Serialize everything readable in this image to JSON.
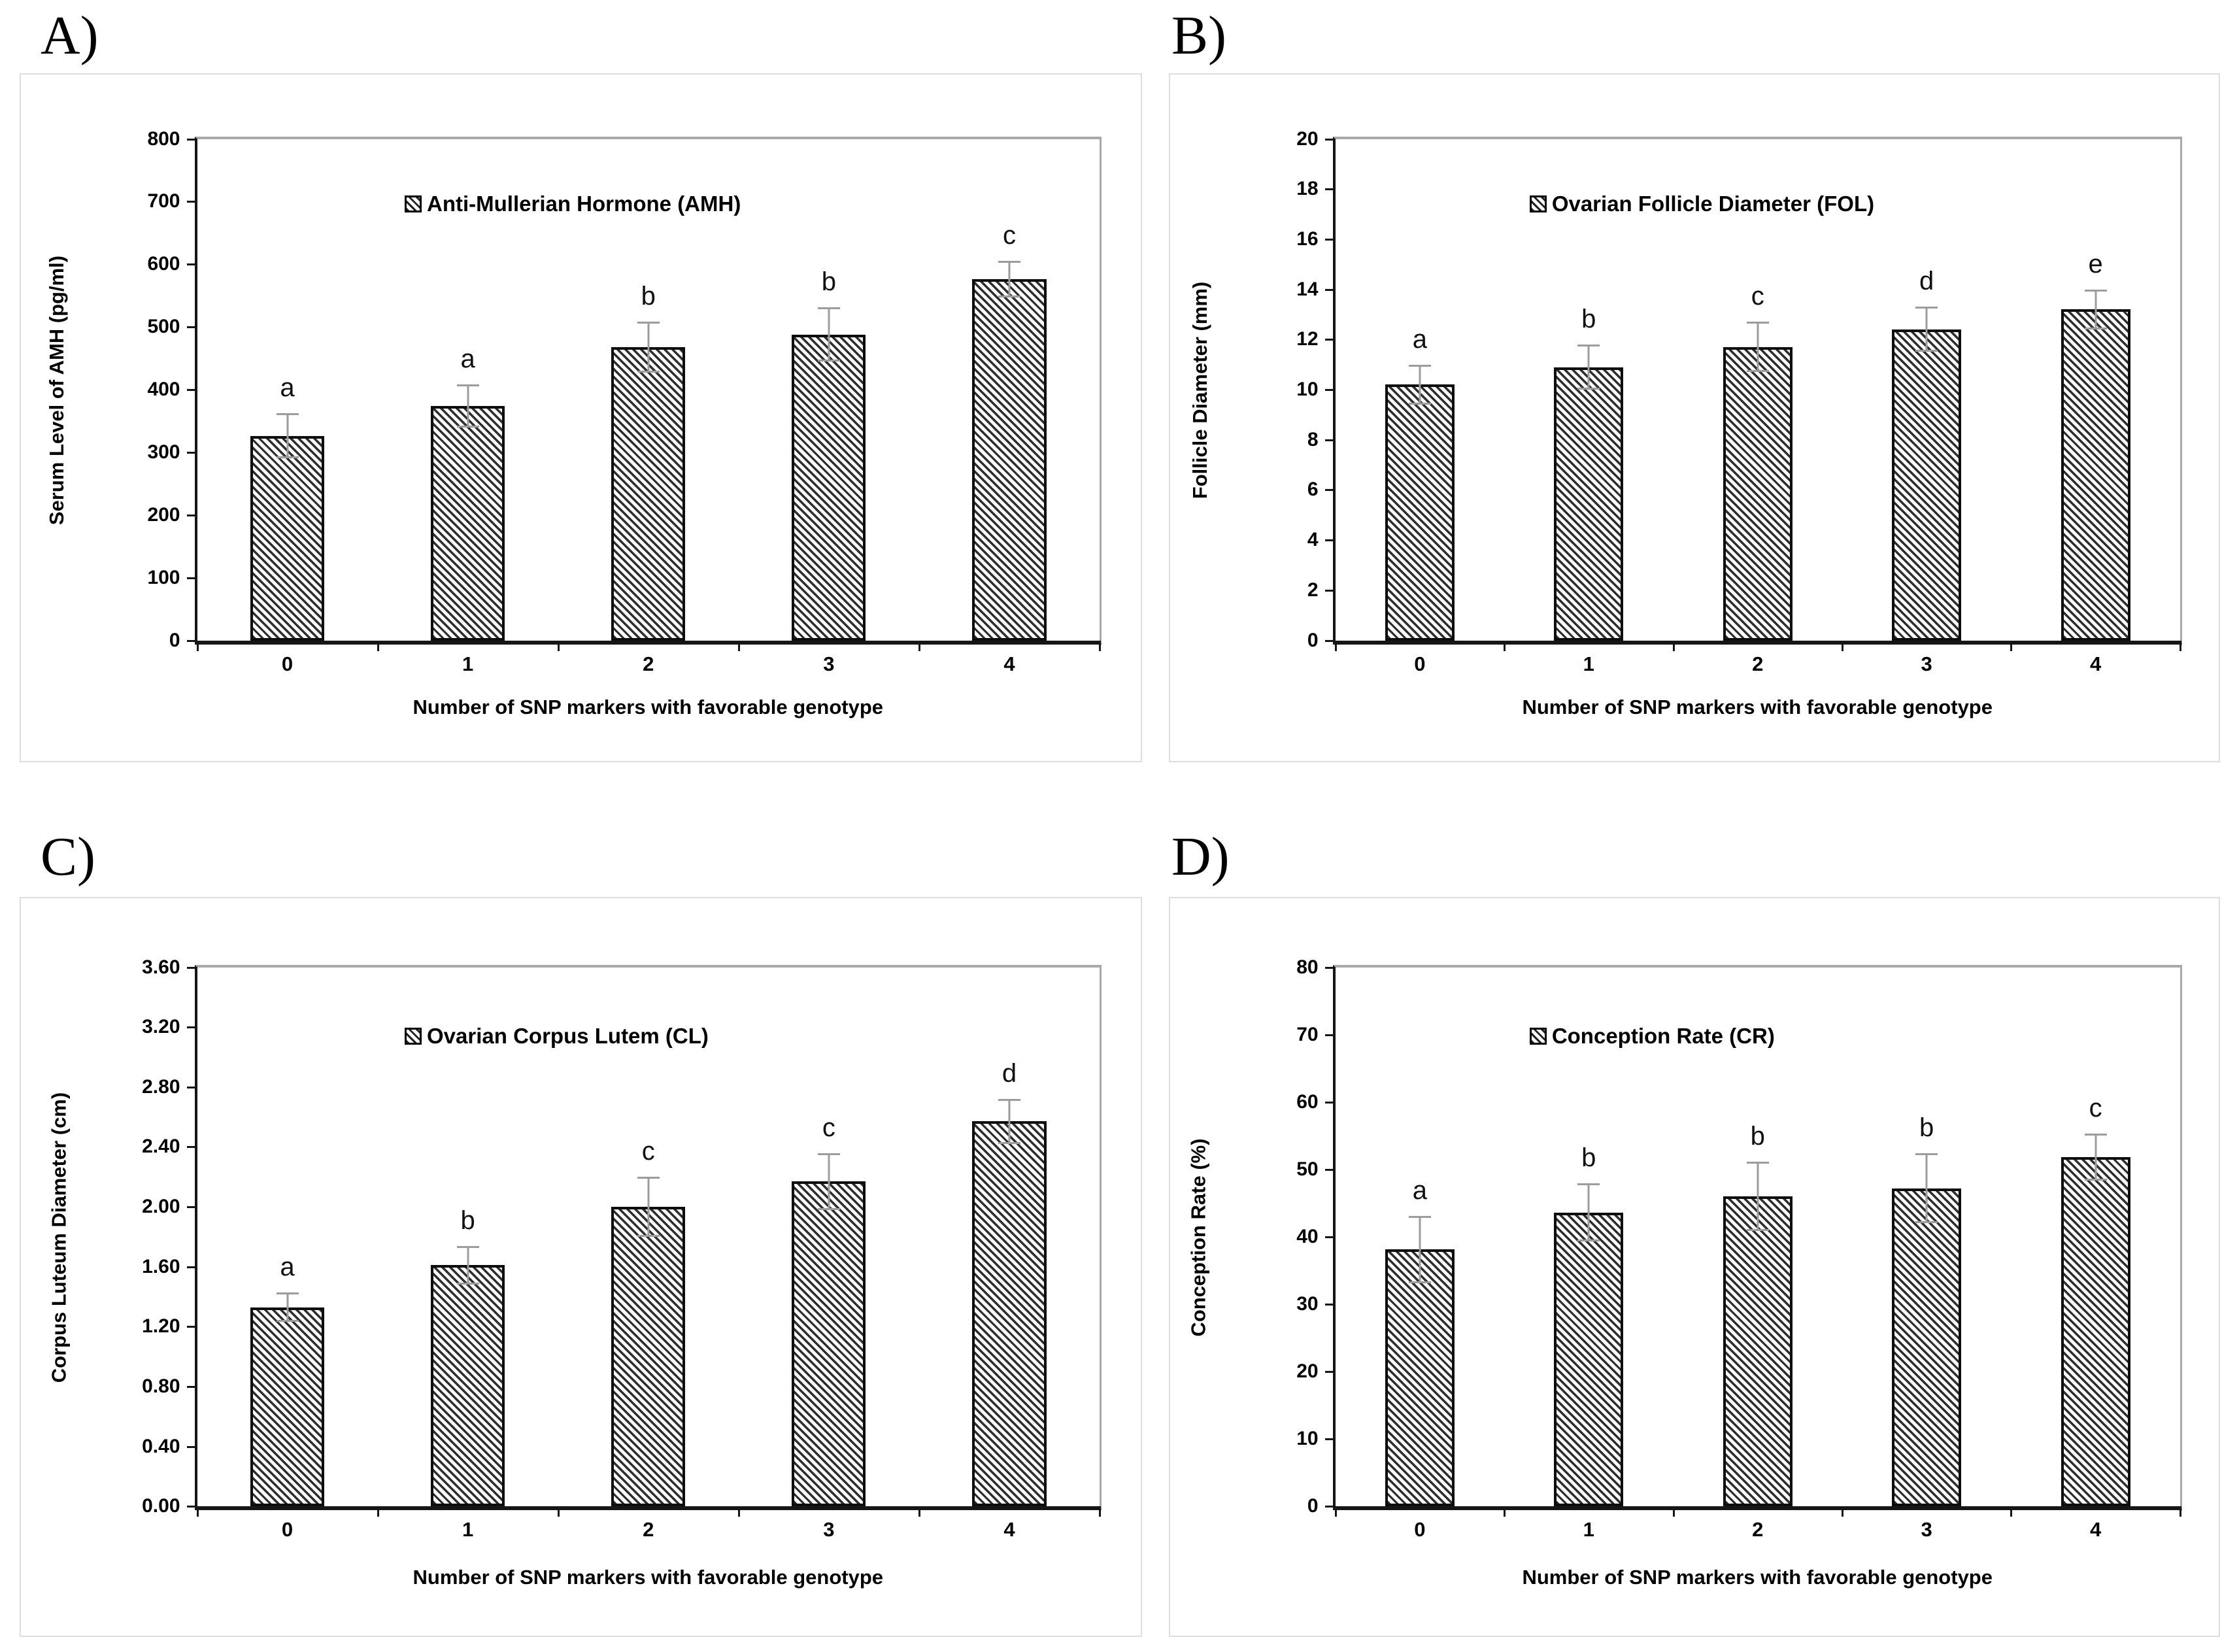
{
  "figure": {
    "xlabel_shared": "Number of SNP markers with favorable genotype"
  },
  "colors": {
    "bar_hatch": "#2e2e2e",
    "bar_border": "#0d0d0d",
    "error_bar": "#9c9c9c",
    "plot_frame_gray": "#a9a9a9",
    "axis_black": "#161616",
    "panel_border": "#dedede"
  },
  "chart_data": [
    {
      "id": "A",
      "panel_label": "A)",
      "type": "bar",
      "legend": "Anti-Mullerian Hormone (AMH)",
      "ylabel": "Serum Level of AMH (pg/ml)",
      "xlabel": "Number of SNP markers with favorable genotype",
      "categories": [
        "0",
        "1",
        "2",
        "3",
        "4"
      ],
      "values": [
        326,
        374,
        468,
        488,
        576
      ],
      "errors": [
        36,
        34,
        41,
        43,
        29
      ],
      "sig_letters": [
        "a",
        "a",
        "b",
        "b",
        "c"
      ],
      "ylim": [
        0,
        800
      ],
      "ystep": 100,
      "tick_decimals": 0,
      "grid": false,
      "legend_position": "inside-top-left-of-center"
    },
    {
      "id": "B",
      "panel_label": "B)",
      "type": "bar",
      "legend": "Ovarian Follicle Diameter (FOL)",
      "ylabel": "Follicle Diameter  (mm)",
      "xlabel": "Number of SNP markers with favorable genotype",
      "categories": [
        "0",
        "1",
        "2",
        "3",
        "4"
      ],
      "values": [
        10.2,
        10.9,
        11.7,
        12.4,
        13.2
      ],
      "errors": [
        0.8,
        0.9,
        1.0,
        0.9,
        0.8
      ],
      "sig_letters": [
        "a",
        "b",
        "c",
        "d",
        "e"
      ],
      "ylim": [
        0,
        20
      ],
      "ystep": 2,
      "tick_decimals": 0,
      "grid": false,
      "legend_position": "inside-top-left-of-center"
    },
    {
      "id": "C",
      "panel_label": "C)",
      "type": "bar",
      "legend": "Ovarian Corpus Lutem (CL)",
      "ylabel": "Corpus Luteum  Diameter  (cm)",
      "xlabel": "Number of SNP markers with favorable genotype",
      "categories": [
        "0",
        "1",
        "2",
        "3",
        "4"
      ],
      "values": [
        1.33,
        1.61,
        2.0,
        2.17,
        2.57
      ],
      "errors": [
        0.1,
        0.13,
        0.2,
        0.19,
        0.15
      ],
      "sig_letters": [
        "a",
        "b",
        "c",
        "c",
        "d"
      ],
      "ylim": [
        0,
        3.6
      ],
      "ystep": 0.4,
      "tick_decimals": 2,
      "grid": false,
      "legend_position": "inside-top-left-of-center"
    },
    {
      "id": "D",
      "panel_label": "D)",
      "type": "bar",
      "legend": "Conception Rate (CR)",
      "ylabel": "Conception Rate (%)",
      "xlabel": "Number of SNP markers with favorable genotype",
      "categories": [
        "0",
        "1",
        "2",
        "3",
        "4"
      ],
      "values": [
        38.1,
        43.6,
        46.0,
        47.2,
        51.8
      ],
      "errors": [
        5.0,
        4.3,
        5.1,
        5.2,
        3.5
      ],
      "sig_letters": [
        "a",
        "b",
        "b",
        "b",
        "c"
      ],
      "ylim": [
        0,
        80
      ],
      "ystep": 10,
      "tick_decimals": 0,
      "grid": false,
      "legend_position": "inside-top-left-of-center"
    }
  ]
}
